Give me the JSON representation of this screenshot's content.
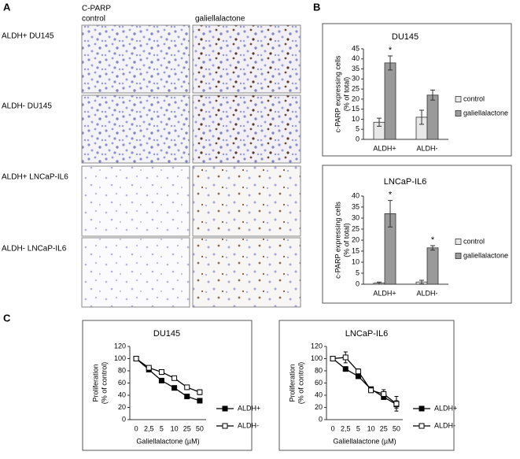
{
  "labels": [
    "A",
    "B",
    "C"
  ],
  "micrographs": {
    "header": "C-PARP",
    "columns": [
      "control",
      "galiellalactone"
    ],
    "rows": [
      "ALDH+ DU145",
      "ALDH- DU145",
      "ALDH+ LNCaP-IL6",
      "ALDH- LNCaP-IL6"
    ]
  },
  "chart_data": [
    {
      "type": "bar",
      "title": "DU145",
      "ylabel": [
        "c-PARP expressing cells",
        "(% of total)"
      ],
      "categories": [
        "ALDH+",
        "ALDH-"
      ],
      "ylim": [
        0,
        45
      ],
      "yticks": [
        0,
        5,
        10,
        15,
        20,
        25,
        30,
        35,
        40,
        45
      ],
      "legend": "right",
      "series": [
        {
          "name": "control",
          "color": "#e8e8e8",
          "values": [
            8.5,
            11
          ],
          "errors": [
            2,
            3.5
          ],
          "annotations": [
            null,
            null
          ]
        },
        {
          "name": "galiellalactone",
          "color": "#9a9a9a",
          "values": [
            38,
            22
          ],
          "errors": [
            3.5,
            2.5
          ],
          "annotations": [
            "*",
            null
          ]
        }
      ]
    },
    {
      "type": "bar",
      "title": "LNCaP-IL6",
      "ylabel": [
        "c-PARP expressing cells",
        "(% of total)"
      ],
      "categories": [
        "ALDH+",
        "ALDH-"
      ],
      "ylim": [
        0,
        40
      ],
      "yticks": [
        0,
        5,
        10,
        15,
        20,
        25,
        30,
        35,
        40
      ],
      "legend": "right",
      "series": [
        {
          "name": "control",
          "color": "#e8e8e8",
          "values": [
            0.5,
            1
          ],
          "errors": [
            0.5,
            0.8
          ],
          "annotations": [
            null,
            null
          ]
        },
        {
          "name": "galiellalactone",
          "color": "#9a9a9a",
          "values": [
            32,
            16.5
          ],
          "errors": [
            6,
            1
          ],
          "annotations": [
            "*",
            "*"
          ]
        }
      ]
    },
    {
      "type": "line",
      "title": "DU145",
      "ylabel": [
        "Proliferation",
        "(% of control)"
      ],
      "xlabel": "Galiellalactone (µM)",
      "categories": [
        "0",
        "2,5",
        "5",
        "10",
        "25",
        "50"
      ],
      "ylim": [
        0,
        120
      ],
      "yticks": [
        0,
        20,
        40,
        60,
        80,
        100,
        120
      ],
      "legend": "right",
      "series": [
        {
          "name": "ALDH+",
          "color": "#000000",
          "values": [
            100,
            82,
            64,
            52,
            38,
            31
          ],
          "errors": [
            2,
            3,
            3,
            3,
            3,
            3
          ]
        },
        {
          "name": "ALDH-",
          "color": "#ffffff",
          "values": [
            100,
            85,
            78,
            68,
            53,
            45
          ],
          "errors": [
            2,
            3,
            4,
            3,
            3,
            4
          ]
        }
      ]
    },
    {
      "type": "line",
      "title": "LNCaP-IL6",
      "ylabel": [
        "Proliferation",
        "(% of control)"
      ],
      "xlabel": "Galiellalactone (µM)",
      "categories": [
        "0",
        "2,5",
        "5",
        "10",
        "25",
        "50"
      ],
      "ylim": [
        0,
        120
      ],
      "yticks": [
        0,
        20,
        40,
        60,
        80,
        100,
        120
      ],
      "legend": "right",
      "series": [
        {
          "name": "ALDH+",
          "color": "#000000",
          "values": [
            100,
            83,
            71,
            50,
            37,
            25
          ],
          "errors": [
            3,
            3,
            3,
            3,
            4,
            6
          ]
        },
        {
          "name": "ALDH-",
          "color": "#ffffff",
          "values": [
            100,
            102,
            79,
            48,
            42,
            26
          ],
          "errors": [
            3,
            9,
            4,
            3,
            7,
            12
          ]
        }
      ]
    }
  ]
}
